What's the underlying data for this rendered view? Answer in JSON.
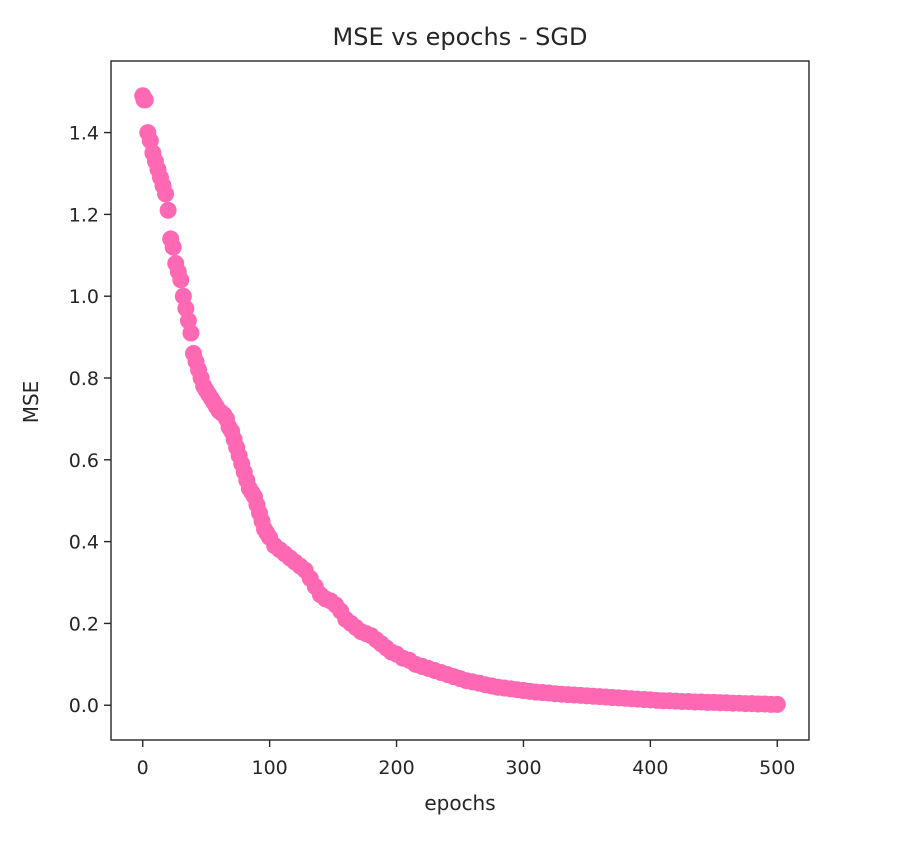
{
  "chart_data": {
    "type": "scatter",
    "title": "MSE vs epochs - SGD",
    "xlabel": "epochs",
    "ylabel": "MSE",
    "xlim": [
      -25,
      525
    ],
    "ylim": [
      -0.085,
      1.575
    ],
    "xticks": [
      {
        "value": 0,
        "label": "0"
      },
      {
        "value": 100,
        "label": "100"
      },
      {
        "value": 200,
        "label": "200"
      },
      {
        "value": 300,
        "label": "300"
      },
      {
        "value": 400,
        "label": "400"
      },
      {
        "value": 500,
        "label": "500"
      }
    ],
    "yticks": [
      {
        "value": 0.0,
        "label": "0.0"
      },
      {
        "value": 0.2,
        "label": "0.2"
      },
      {
        "value": 0.4,
        "label": "0.4"
      },
      {
        "value": 0.6,
        "label": "0.6"
      },
      {
        "value": 0.8,
        "label": "0.8"
      },
      {
        "value": 1.0,
        "label": "1.0"
      },
      {
        "value": 1.2,
        "label": "1.2"
      },
      {
        "value": 1.4,
        "label": "1.4"
      }
    ],
    "grid": false,
    "marker_color": "#ff69b4",
    "series": [
      {
        "points": [
          [
            0,
            1.49
          ],
          [
            1,
            1.48
          ],
          [
            2,
            1.48
          ],
          [
            4,
            1.4
          ],
          [
            6,
            1.38
          ],
          [
            8,
            1.35
          ],
          [
            10,
            1.33
          ],
          [
            12,
            1.31
          ],
          [
            14,
            1.29
          ],
          [
            16,
            1.27
          ],
          [
            18,
            1.25
          ],
          [
            20,
            1.21
          ],
          [
            22,
            1.14
          ],
          [
            24,
            1.12
          ],
          [
            26,
            1.08
          ],
          [
            28,
            1.06
          ],
          [
            30,
            1.04
          ],
          [
            32,
            1.0
          ],
          [
            34,
            0.97
          ],
          [
            36,
            0.94
          ],
          [
            38,
            0.91
          ],
          [
            40,
            0.86
          ],
          [
            42,
            0.84
          ],
          [
            44,
            0.82
          ],
          [
            46,
            0.8
          ],
          [
            48,
            0.78
          ],
          [
            50,
            0.77
          ],
          [
            52,
            0.76
          ],
          [
            54,
            0.75
          ],
          [
            56,
            0.74
          ],
          [
            58,
            0.73
          ],
          [
            60,
            0.72
          ],
          [
            62,
            0.715
          ],
          [
            64,
            0.71
          ],
          [
            66,
            0.7
          ],
          [
            68,
            0.68
          ],
          [
            70,
            0.67
          ],
          [
            72,
            0.65
          ],
          [
            74,
            0.63
          ],
          [
            76,
            0.61
          ],
          [
            78,
            0.59
          ],
          [
            80,
            0.57
          ],
          [
            82,
            0.55
          ],
          [
            84,
            0.53
          ],
          [
            86,
            0.52
          ],
          [
            88,
            0.51
          ],
          [
            90,
            0.49
          ],
          [
            92,
            0.47
          ],
          [
            94,
            0.45
          ],
          [
            96,
            0.43
          ],
          [
            98,
            0.42
          ],
          [
            100,
            0.41
          ],
          [
            104,
            0.39
          ],
          [
            108,
            0.38
          ],
          [
            112,
            0.37
          ],
          [
            116,
            0.36
          ],
          [
            120,
            0.35
          ],
          [
            124,
            0.34
          ],
          [
            128,
            0.33
          ],
          [
            132,
            0.31
          ],
          [
            136,
            0.29
          ],
          [
            140,
            0.27
          ],
          [
            144,
            0.26
          ],
          [
            148,
            0.255
          ],
          [
            152,
            0.245
          ],
          [
            156,
            0.23
          ],
          [
            160,
            0.21
          ],
          [
            164,
            0.2
          ],
          [
            168,
            0.19
          ],
          [
            172,
            0.18
          ],
          [
            176,
            0.175
          ],
          [
            180,
            0.17
          ],
          [
            184,
            0.16
          ],
          [
            188,
            0.15
          ],
          [
            192,
            0.14
          ],
          [
            196,
            0.13
          ],
          [
            200,
            0.125
          ],
          [
            205,
            0.115
          ],
          [
            210,
            0.11
          ],
          [
            215,
            0.1
          ],
          [
            220,
            0.095
          ],
          [
            225,
            0.09
          ],
          [
            230,
            0.085
          ],
          [
            235,
            0.08
          ],
          [
            240,
            0.075
          ],
          [
            245,
            0.07
          ],
          [
            250,
            0.065
          ],
          [
            255,
            0.06
          ],
          [
            260,
            0.057
          ],
          [
            265,
            0.054
          ],
          [
            270,
            0.05
          ],
          [
            275,
            0.047
          ],
          [
            280,
            0.044
          ],
          [
            285,
            0.042
          ],
          [
            290,
            0.04
          ],
          [
            295,
            0.038
          ],
          [
            300,
            0.036
          ],
          [
            305,
            0.034
          ],
          [
            310,
            0.032
          ],
          [
            315,
            0.031
          ],
          [
            320,
            0.03
          ],
          [
            325,
            0.028
          ],
          [
            330,
            0.027
          ],
          [
            335,
            0.026
          ],
          [
            340,
            0.025
          ],
          [
            345,
            0.024
          ],
          [
            350,
            0.023
          ],
          [
            355,
            0.022
          ],
          [
            360,
            0.021
          ],
          [
            365,
            0.02
          ],
          [
            370,
            0.019
          ],
          [
            375,
            0.018
          ],
          [
            380,
            0.017
          ],
          [
            385,
            0.016
          ],
          [
            390,
            0.015
          ],
          [
            395,
            0.014
          ],
          [
            400,
            0.013
          ],
          [
            405,
            0.012
          ],
          [
            410,
            0.011
          ],
          [
            415,
            0.011
          ],
          [
            420,
            0.01
          ],
          [
            425,
            0.009
          ],
          [
            430,
            0.009
          ],
          [
            435,
            0.008
          ],
          [
            440,
            0.008
          ],
          [
            445,
            0.007
          ],
          [
            450,
            0.007
          ],
          [
            455,
            0.006
          ],
          [
            460,
            0.006
          ],
          [
            465,
            0.005
          ],
          [
            470,
            0.005
          ],
          [
            475,
            0.004
          ],
          [
            480,
            0.004
          ],
          [
            485,
            0.003
          ],
          [
            490,
            0.003
          ],
          [
            495,
            0.002
          ],
          [
            500,
            0.002
          ]
        ]
      }
    ]
  }
}
